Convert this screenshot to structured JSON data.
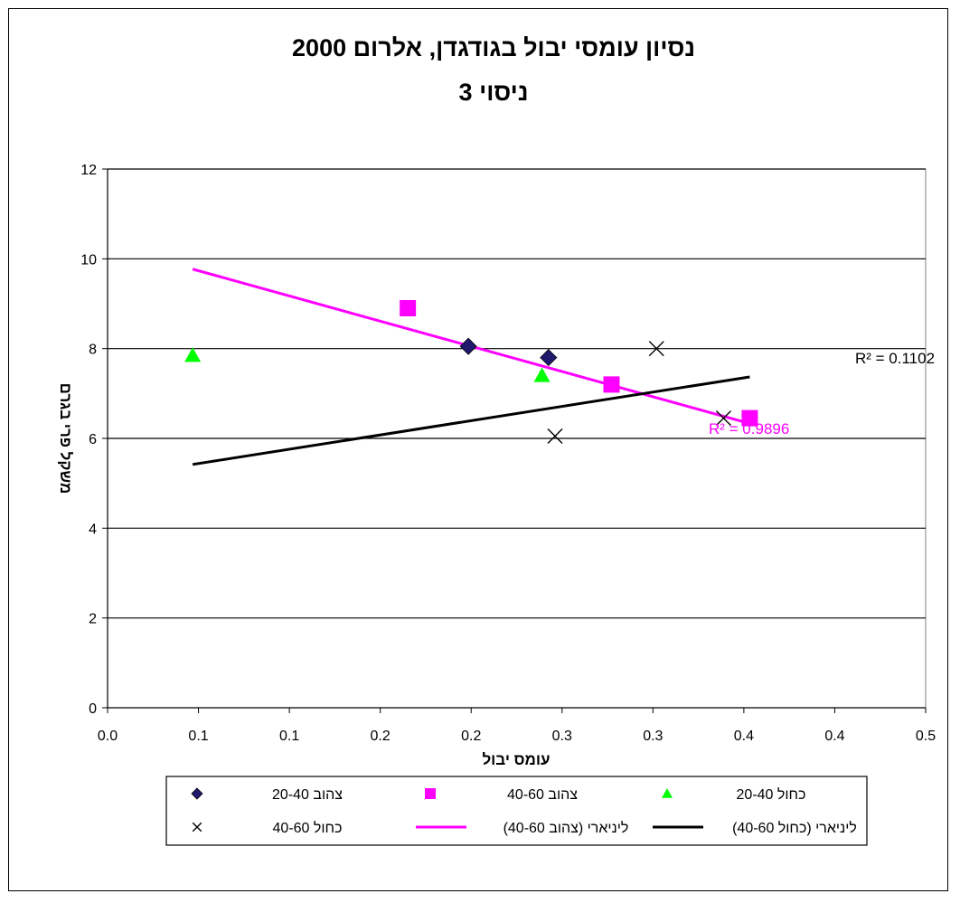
{
  "chart_data": {
    "type": "scatter",
    "title_lines": [
      "נסיון עומסי יבול בגודגדן, אלרום 2000",
      "ניסוי 3"
    ],
    "xlabel": "עומס יבול",
    "ylabel": "משקל פרי בגרם",
    "xlim": [
      0,
      0.5
    ],
    "ylim": [
      0,
      12
    ],
    "x_ticks": [
      "0.0",
      "0.1",
      "0.1",
      "0.2",
      "0.2",
      "0.3",
      "0.3",
      "0.4",
      "0.4",
      "0.5"
    ],
    "y_ticks": [
      "0",
      "2",
      "4",
      "6",
      "8",
      "10",
      "12"
    ],
    "grid": "horizontal",
    "series": [
      {
        "name": "צהוב 20-40",
        "marker": "diamond",
        "color": "#1F1A6E",
        "points": [
          [
            0.2205,
            8.05
          ],
          [
            0.2695,
            7.8
          ]
        ]
      },
      {
        "name": "צהוב 40-60",
        "marker": "square",
        "color": "#FF00FF",
        "points": [
          [
            0.1835,
            8.9
          ],
          [
            0.308,
            7.2
          ],
          [
            0.3925,
            6.45
          ]
        ]
      },
      {
        "name": "כחול 20-40",
        "marker": "triangle",
        "color": "#00FF00",
        "points": [
          [
            0.052,
            7.85
          ],
          [
            0.2655,
            7.4
          ]
        ]
      },
      {
        "name": "כחול 40-60",
        "marker": "x",
        "color": "#000000",
        "points": [
          [
            0.2735,
            6.05
          ],
          [
            0.3355,
            8.0
          ],
          [
            0.3765,
            6.45
          ]
        ]
      }
    ],
    "trendlines": [
      {
        "name": "ליניארי (צהוב 40-60)",
        "color": "#FF00FF",
        "from": [
          0.052,
          9.77
        ],
        "to": [
          0.3925,
          6.33
        ],
        "r2_label": "R² = 0.9896"
      },
      {
        "name": "ליניארי (כחול 40-60)",
        "color": "#000000",
        "from": [
          0.052,
          5.42
        ],
        "to": [
          0.3925,
          7.37
        ],
        "r2_label": "R² = 0.1102"
      }
    ],
    "legend_placement": "bottom"
  },
  "legend": {
    "items": [
      {
        "label": "צהוב 20-40",
        "marker": "diamond",
        "color": "#1F1A6E"
      },
      {
        "label": "צהוב 40-60",
        "marker": "square",
        "color": "#FF00FF"
      },
      {
        "label": "כחול 20-40",
        "marker": "triangle",
        "color": "#00FF00"
      },
      {
        "label": "כחול 40-60",
        "marker": "x",
        "color": "#000000"
      },
      {
        "label": "ליניארי (צהוב 40-60)",
        "marker": "line",
        "color": "#FF00FF"
      },
      {
        "label": "ליניארי (כחול 40-60)",
        "marker": "line",
        "color": "#000000"
      }
    ]
  }
}
